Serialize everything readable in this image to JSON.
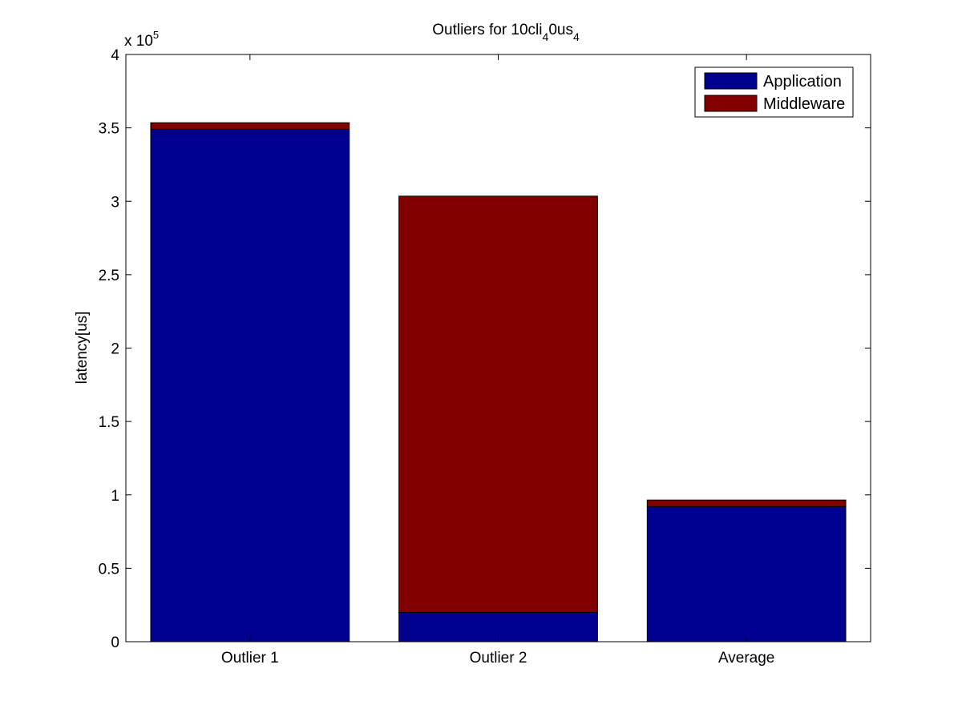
{
  "chart_data": {
    "type": "bar",
    "stacked": true,
    "title": {
      "prefix": "Outliers for 10cli",
      "sub1": "4",
      "mid": "0us",
      "sub2": "4"
    },
    "xlabel": "",
    "ylabel": "latency[us]",
    "exponent_label": {
      "base": "x 10",
      "exp": "5"
    },
    "categories": [
      "Outlier 1",
      "Outlier 2",
      "Average"
    ],
    "series": [
      {
        "name": "Application",
        "color": "#00008f",
        "values": [
          349000,
          20000,
          92000
        ]
      },
      {
        "name": "Middleware",
        "color": "#800000",
        "values": [
          4500,
          283500,
          4500
        ]
      }
    ],
    "ylim": [
      0,
      400000
    ],
    "y_ticks": [
      0,
      50000,
      100000,
      150000,
      200000,
      250000,
      300000,
      350000,
      400000
    ],
    "y_tick_labels": [
      "0",
      "0.5",
      "1",
      "1.5",
      "2",
      "2.5",
      "3",
      "3.5",
      "4"
    ],
    "legend_position": "top-right",
    "grid": false
  }
}
